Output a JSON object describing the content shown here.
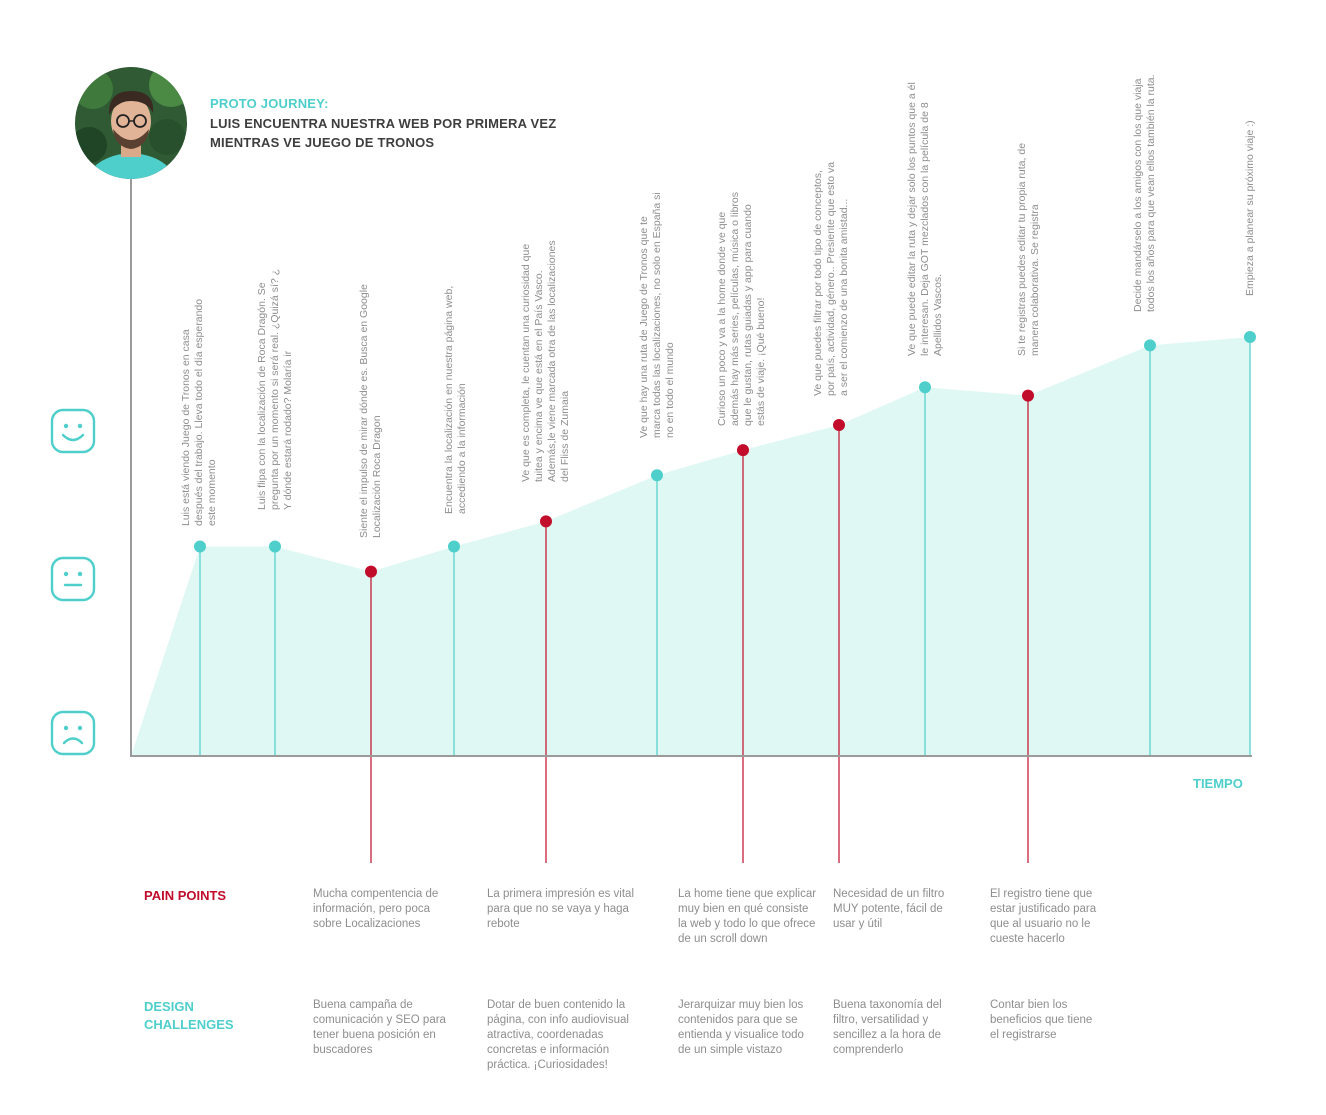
{
  "header": {
    "kicker": "PROTO JOURNEY:",
    "title": "LUIS ENCUENTRA NUESTRA WEB POR PRIMERA VEZ MIENTRAS VE JUEGO DE TRONOS"
  },
  "x_axis_label": "TIEMPO",
  "colors": {
    "accent": "#4ecfcb",
    "pain": "#c10c2b",
    "area": "#e0f8f3",
    "axis": "#9a9a9a",
    "text": "#8e8e8e"
  },
  "faces": [
    "happy-face-icon",
    "neutral-face-icon",
    "sad-face-icon"
  ],
  "steps": [
    {
      "level": 0.5,
      "pain": false,
      "text": "Luis está viendo Juego de Tronos en casa después del trabajo. Lleva todo el día esperando este momento"
    },
    {
      "level": 0.5,
      "pain": false,
      "text": "Luis flipa con la localización de Roca Dragón. Se pregunta por un momento si será real. ¿Quizá sí? ¿ Y dónde estará rodado? Molaría ir"
    },
    {
      "level": 0.44,
      "pain": true,
      "text": "Siente el impulso de mirar dónde es. Busca en Google Localización Roca Dragon"
    },
    {
      "level": 0.5,
      "pain": false,
      "text": "Encuentra la localización en nuestra página web, accediendo a la información"
    },
    {
      "level": 0.56,
      "pain": true,
      "text": "Ve que es completa, le cuentan una curiosidad que tuitea y encima ve que está en el País Vasco. Además,le viene marcada otra de las localizaciones del Fliss de Zumaia"
    },
    {
      "level": 0.67,
      "pain": false,
      "text": "Ve que hay una ruta de Juego de Tronos que te marca todas las localizaciones, no solo en España si no en todo el mundo"
    },
    {
      "level": 0.73,
      "pain": true,
      "text": "Curioso un poco y va a la home donde ve que además hay más series, películas, música o libros que le gustan, rutas guiadas y app para cuando estás de viaje. ¡Qué bueno!"
    },
    {
      "level": 0.79,
      "pain": true,
      "text": "Ve que puedes filtrar por todo tipo de conceptos, por país, actividad, género.. Presiente que esto va a ser el comienzo de una bonita amistad..."
    },
    {
      "level": 0.88,
      "pain": false,
      "text": "Ve que  puede editar la ruta y dejar solo los puntos que a él le interesan. Deja GOT mezclados con la película de 8 Apellidos Vascos."
    },
    {
      "level": 0.86,
      "pain": true,
      "text": "Si te registras puedes editar tu propia ruta, de manera colaborativa. Se registra"
    },
    {
      "level": 0.98,
      "pain": false,
      "text": "Decide mandárselo a los amigos con los que viaja todos los años para que vean ellos también la ruta."
    },
    {
      "level": 1.0,
      "pain": false,
      "text": "Empieza a planear su próximo viaje :)"
    }
  ],
  "pain_points": {
    "label": "PAIN POINTS",
    "items": [
      "Mucha compentencia de información, pero poca sobre Localizaciones",
      "La primera impresión es vital para que no se vaya y haga rebote",
      "La home tiene que explicar muy bien en qué consiste la web y todo lo que ofrece de un scroll down",
      "Necesidad de un filtro MUY potente, fácil de usar y útil",
      "El registro tiene que estar justificado para que al usuario no le cueste hacerlo"
    ]
  },
  "design_challenges": {
    "label": "DESIGN CHALLENGES",
    "items": [
      "Buena campaña de comunicación y SEO para tener buena posición en buscadores",
      "Dotar de buen contenido la página, con info audiovisual atractiva, coordenadas concretas e información práctica. ¡Curiosidades!",
      "Jerarquizar muy bien los contenidos para que se entienda y visualice todo de un simple vistazo",
      "Buena taxonomía del filtro, versatilidad y sencillez a la hora de comprenderlo",
      "Contar bien los beneficios que tiene el registrarse"
    ]
  }
}
